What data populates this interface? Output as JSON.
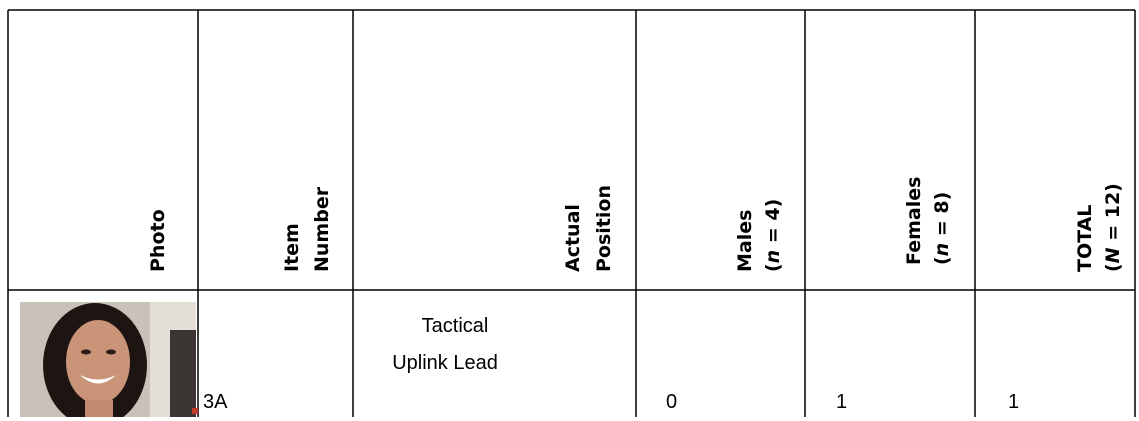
{
  "table": {
    "header": [
      {
        "lines": [
          [
            "Photo"
          ]
        ]
      },
      {
        "lines": [
          [
            "Item"
          ],
          [
            "Number"
          ]
        ]
      },
      {
        "lines": [
          [
            "Actual"
          ],
          [
            "Position"
          ]
        ]
      },
      {
        "lines": [
          [
            "Males"
          ],
          [
            "(",
            "n",
            " = 4)"
          ]
        ]
      },
      {
        "lines": [
          [
            "Females"
          ],
          [
            "(",
            "n",
            " = 8)"
          ]
        ]
      },
      {
        "lines": [
          [
            "TOTAL"
          ],
          [
            "(",
            "N",
            " = 12)"
          ]
        ]
      }
    ],
    "rows": [
      {
        "item": "3A",
        "position": [
          "Tactical",
          "Uplink Lead"
        ],
        "males": 0,
        "females": 1,
        "total": 1
      }
    ]
  }
}
